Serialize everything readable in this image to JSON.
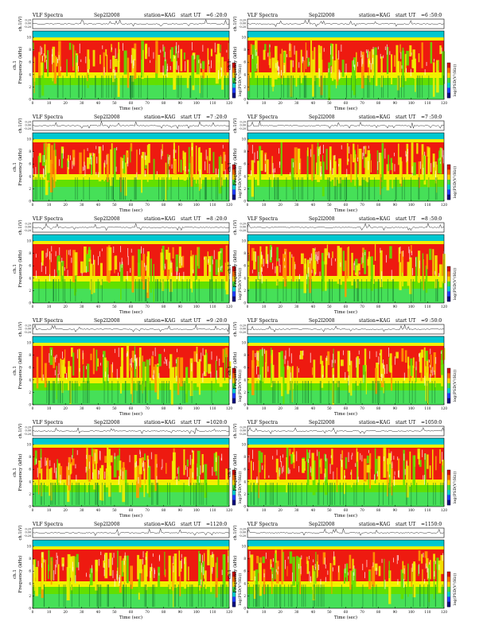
{
  "page": {
    "header": {
      "title": "VLF Spectra",
      "date": "Sep2l2008",
      "station": "station=KAG",
      "start_prefix": "start  UT"
    },
    "labels": {
      "amp_ylabel": "ch.1(V)",
      "spec_ylabel": "Frequency  (kHz)",
      "spec_ylabel_ch": "ch.1",
      "xlabel": "Time  (sec)",
      "colorbar_label": "log(PSD(V²/Hz))"
    },
    "amp_ticks": [
      "0.20",
      "0.00",
      "-0.20"
    ],
    "freq_ticks": [
      "10",
      "8",
      "6",
      "4",
      "2",
      "0"
    ],
    "time_ticks": [
      "0",
      "10",
      "20",
      "30",
      "40",
      "50",
      "60",
      "70",
      "80",
      "90",
      "100",
      "110",
      "120"
    ],
    "colors": {
      "low": "#00c8d0",
      "mid": "#62e000",
      "yellow": "#f2f000",
      "orange": "#ff9a00",
      "high": "#ee1a10",
      "colorbar": [
        "#d81010",
        "#ff6a00",
        "#ffd800",
        "#40e040",
        "#00d0d0",
        "#2040ff",
        "#101080"
      ]
    }
  },
  "chart_data": [
    {
      "type": "heatmap",
      "start_ut": "=6 :20:0",
      "xlim": [
        0,
        120
      ],
      "ylim": [
        0,
        10
      ],
      "ylabel": "Frequency (kHz)",
      "xlabel": "Time (sec)",
      "z_label": "log(PSD(V²/Hz))"
    },
    {
      "type": "heatmap",
      "start_ut": "=6 :50:0",
      "xlim": [
        0,
        120
      ],
      "ylim": [
        0,
        10
      ],
      "ylabel": "Frequency (kHz)",
      "xlabel": "Time (sec)",
      "z_label": "log(PSD(V²/Hz))"
    },
    {
      "type": "heatmap",
      "start_ut": "=7 :20:0",
      "xlim": [
        0,
        120
      ],
      "ylim": [
        0,
        10
      ],
      "ylabel": "Frequency (kHz)",
      "xlabel": "Time (sec)",
      "z_label": "log(PSD(V²/Hz))"
    },
    {
      "type": "heatmap",
      "start_ut": "=7 :50:0",
      "xlim": [
        0,
        120
      ],
      "ylim": [
        0,
        10
      ],
      "ylabel": "Frequency (kHz)",
      "xlabel": "Time (sec)",
      "z_label": "log(PSD(V²/Hz))"
    },
    {
      "type": "heatmap",
      "start_ut": "=8 :20:0",
      "xlim": [
        0,
        120
      ],
      "ylim": [
        0,
        10
      ],
      "ylabel": "Frequency (kHz)",
      "xlabel": "Time (sec)",
      "z_label": "log(PSD(V²/Hz))"
    },
    {
      "type": "heatmap",
      "start_ut": "=8 :50:0",
      "xlim": [
        0,
        120
      ],
      "ylim": [
        0,
        10
      ],
      "ylabel": "Frequency (kHz)",
      "xlabel": "Time (sec)",
      "z_label": "log(PSD(V²/Hz))"
    },
    {
      "type": "heatmap",
      "start_ut": "=9 :20:0",
      "xlim": [
        0,
        120
      ],
      "ylim": [
        0,
        10
      ],
      "ylabel": "Frequency (kHz)",
      "xlabel": "Time (sec)",
      "z_label": "log(PSD(V²/Hz))"
    },
    {
      "type": "heatmap",
      "start_ut": "=9 :50:0",
      "xlim": [
        0,
        120
      ],
      "ylim": [
        0,
        10
      ],
      "ylabel": "Frequency (kHz)",
      "xlabel": "Time (sec)",
      "z_label": "log(PSD(V²/Hz))"
    },
    {
      "type": "heatmap",
      "start_ut": "=1020:0",
      "xlim": [
        0,
        120
      ],
      "ylim": [
        0,
        10
      ],
      "ylabel": "Frequency (kHz)",
      "xlabel": "Time (sec)",
      "z_label": "log(PSD(V²/Hz))"
    },
    {
      "type": "heatmap",
      "start_ut": "=1050:0",
      "xlim": [
        0,
        120
      ],
      "ylim": [
        0,
        10
      ],
      "ylabel": "Frequency (kHz)",
      "xlabel": "Time (sec)",
      "z_label": "log(PSD(V²/Hz))"
    },
    {
      "type": "heatmap",
      "start_ut": "=1120:0",
      "xlim": [
        0,
        120
      ],
      "ylim": [
        0,
        10
      ],
      "ylabel": "Frequency (kHz)",
      "xlabel": "Time (sec)",
      "z_label": "log(PSD(V²/Hz))"
    },
    {
      "type": "heatmap",
      "start_ut": "=1150:0",
      "xlim": [
        0,
        120
      ],
      "ylim": [
        0,
        10
      ],
      "ylabel": "Frequency (kHz)",
      "xlabel": "Time (sec)",
      "z_label": "log(PSD(V²/Hz))"
    }
  ]
}
